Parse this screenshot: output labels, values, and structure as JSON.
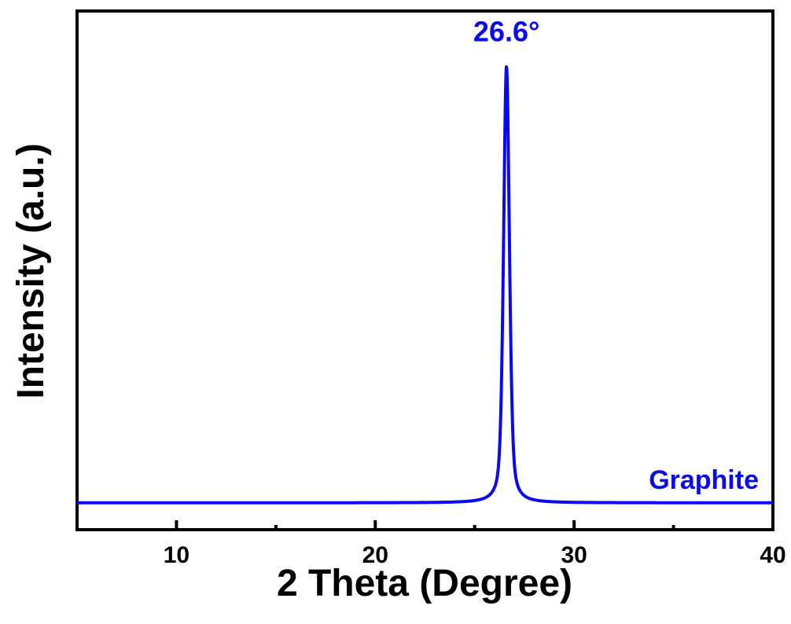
{
  "chart_data": {
    "type": "line",
    "title": "",
    "xlabel": "2 Theta (Degree)",
    "ylabel": "Intensity (a.u.)",
    "xlim": [
      5,
      40
    ],
    "ylim": [
      0,
      1.12
    ],
    "x_major_ticks": [
      10,
      20,
      30,
      40
    ],
    "x_minor_ticks": [
      15,
      25,
      35
    ],
    "x_tick_labels": [
      "10",
      "20",
      "30",
      "40"
    ],
    "y_ticks_shown": false,
    "grid": false,
    "series": [
      {
        "name": "Graphite",
        "color": "#0a0af0",
        "peak_position": 26.6,
        "peak_fwhm": 0.35,
        "peak_intensity": 1.0,
        "baseline": 0.058,
        "points": [
          [
            5,
            0.059
          ],
          [
            10,
            0.059
          ],
          [
            15,
            0.058
          ],
          [
            20,
            0.057
          ],
          [
            24,
            0.059
          ],
          [
            25.5,
            0.07
          ],
          [
            26.1,
            0.2
          ],
          [
            26.4,
            0.7
          ],
          [
            26.6,
            1.0
          ],
          [
            26.8,
            0.7
          ],
          [
            27.1,
            0.2
          ],
          [
            27.7,
            0.07
          ],
          [
            30,
            0.059
          ],
          [
            35,
            0.058
          ],
          [
            40,
            0.058
          ]
        ]
      }
    ],
    "annotations": [
      {
        "text": "26.6°",
        "x": 26.6
      }
    ]
  }
}
